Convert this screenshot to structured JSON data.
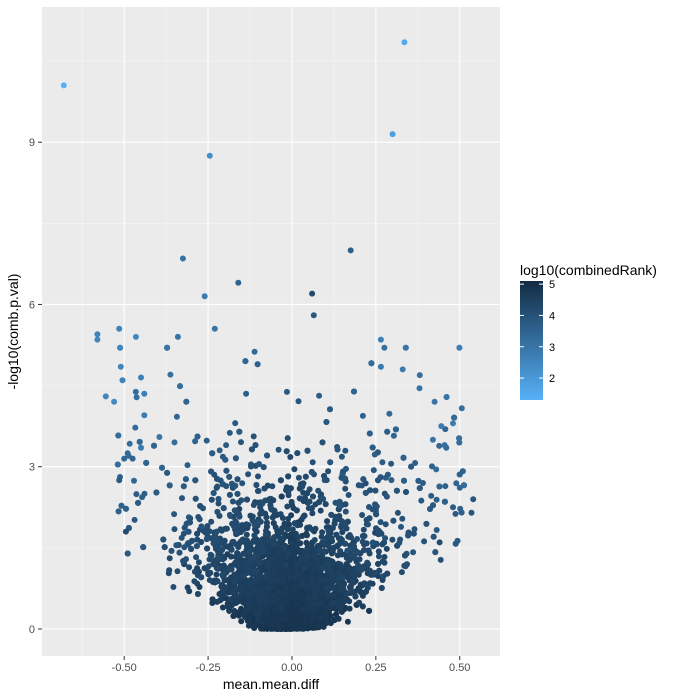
{
  "chart_data": {
    "type": "scatter",
    "title": "",
    "xlabel": "mean.mean.diff",
    "ylabel": "-log10(comb.p.val)",
    "xlim": [
      -0.745,
      0.62
    ],
    "ylim": [
      -0.5,
      11.5
    ],
    "x_ticks": [
      -0.5,
      -0.25,
      0.0,
      0.25,
      0.5
    ],
    "x_tick_labels": [
      "-0.50",
      "-0.25",
      "0.00",
      "0.25",
      "0.50"
    ],
    "y_ticks": [
      0,
      3,
      6,
      9
    ],
    "y_tick_labels": [
      "0",
      "3",
      "6",
      "9"
    ],
    "grid": true,
    "panel_background": "#ebebeb",
    "grid_major_color": "#ffffff",
    "color_scale": {
      "title": "log10(combinedRank)",
      "low_color": "#56b1f7",
      "high_color": "#132b43",
      "range": [
        1.3,
        5.1
      ],
      "ticks": [
        2,
        3,
        4,
        5
      ],
      "tick_labels": [
        "2",
        "3",
        "4",
        "5"
      ],
      "legend_position": "right"
    },
    "highlighted_points": [
      {
        "x": -0.68,
        "y": 10.05,
        "c": 1.3
      },
      {
        "x": 0.335,
        "y": 10.85,
        "c": 1.5
      },
      {
        "x": 0.3,
        "y": 9.15,
        "c": 1.8
      },
      {
        "x": -0.245,
        "y": 8.75,
        "c": 2.3
      },
      {
        "x": 0.175,
        "y": 7.0,
        "c": 3.6
      },
      {
        "x": -0.325,
        "y": 6.85,
        "c": 3.1
      },
      {
        "x": -0.16,
        "y": 6.4,
        "c": 3.5
      },
      {
        "x": 0.06,
        "y": 6.2,
        "c": 4.2
      },
      {
        "x": -0.26,
        "y": 6.15,
        "c": 2.8
      },
      {
        "x": 0.065,
        "y": 5.8,
        "c": 3.8
      },
      {
        "x": -0.58,
        "y": 5.45,
        "c": 2.6
      },
      {
        "x": -0.58,
        "y": 5.35,
        "c": 2.5
      },
      {
        "x": -0.515,
        "y": 5.55,
        "c": 2.6
      },
      {
        "x": -0.465,
        "y": 5.4,
        "c": 2.5
      },
      {
        "x": -0.34,
        "y": 5.4,
        "c": 3.1
      },
      {
        "x": -0.23,
        "y": 5.55,
        "c": 3.0
      },
      {
        "x": 0.265,
        "y": 5.35,
        "c": 2.7
      },
      {
        "x": -0.51,
        "y": 4.85,
        "c": 2.5
      },
      {
        "x": -0.505,
        "y": 4.6,
        "c": 2.6
      },
      {
        "x": -0.45,
        "y": 4.65,
        "c": 2.7
      },
      {
        "x": 0.33,
        "y": 4.8,
        "c": 2.8
      },
      {
        "x": 0.265,
        "y": 4.85,
        "c": 2.9
      },
      {
        "x": -0.555,
        "y": 4.3,
        "c": 2.5
      },
      {
        "x": -0.53,
        "y": 4.2,
        "c": 2.4
      },
      {
        "x": -0.44,
        "y": 4.35,
        "c": 2.7
      },
      {
        "x": -0.44,
        "y": 3.95,
        "c": 2.8
      },
      {
        "x": 0.38,
        "y": 4.45,
        "c": 3.0
      },
      {
        "x": 0.48,
        "y": 3.8,
        "c": 2.8
      },
      {
        "x": 0.445,
        "y": 3.75,
        "c": 2.8
      },
      {
        "x": 0.425,
        "y": 4.2,
        "c": 3.0
      },
      {
        "x": 0.455,
        "y": 3.4,
        "c": 3.2
      },
      {
        "x": 0.46,
        "y": 3.35,
        "c": 3.3
      },
      {
        "x": -0.49,
        "y": 3.25,
        "c": 3.3
      },
      {
        "x": -0.5,
        "y": 3.15,
        "c": 3.4
      },
      {
        "x": -0.475,
        "y": 3.15,
        "c": 3.5
      },
      {
        "x": -0.45,
        "y": 3.35,
        "c": 2.9
      },
      {
        "x": -0.395,
        "y": 3.55,
        "c": 3.0
      },
      {
        "x": -0.35,
        "y": 3.45,
        "c": 3.2
      },
      {
        "x": 0.42,
        "y": 3.5,
        "c": 3.0
      },
      {
        "x": 0.43,
        "y": 2.95,
        "c": 3.3
      },
      {
        "x": 0.54,
        "y": 2.4,
        "c": 3.9
      },
      {
        "x": 0.535,
        "y": 2.15,
        "c": 3.9
      },
      {
        "x": 0.48,
        "y": 2.25,
        "c": 3.8
      },
      {
        "x": -0.515,
        "y": 2.75,
        "c": 3.8
      },
      {
        "x": -0.495,
        "y": 1.8,
        "c": 4.2
      },
      {
        "x": 0.44,
        "y": 1.6,
        "c": 4.2
      }
    ]
  }
}
